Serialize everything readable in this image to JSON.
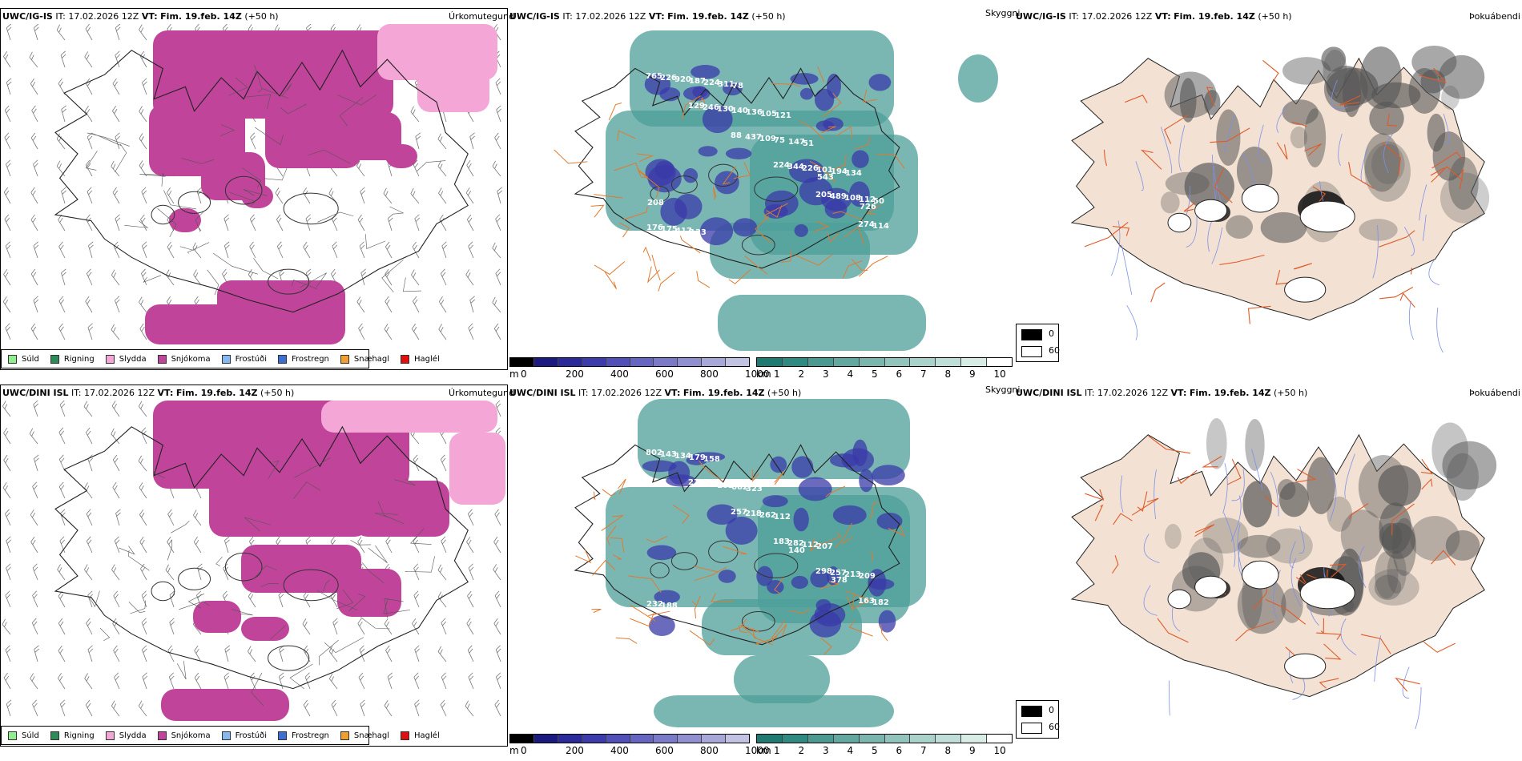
{
  "colors": {
    "sudd": "#90ee90",
    "rigning": "#2e8b57",
    "slydda": "#f4a6d7",
    "snjokoma": "#c0449a",
    "frostudi": "#87b8ef",
    "frostregn": "#3c6fd1",
    "snaehagl": "#f0a030",
    "haglel": "#e01010",
    "cloud_teal": "#4e9f9a",
    "cloud_blue": "#3a3aa8",
    "land_fog": "#f3e2d3",
    "road": "#e05a28",
    "river": "#7c90e8"
  },
  "rows": [
    {
      "model": "UWC/IG-IS",
      "it_label": "IT:",
      "it_value": "17.02.2026 12Z",
      "vt_label": "VT:",
      "vt_value": "Fim. 19.feb. 14Z",
      "lead": "(+50 h)",
      "peaks": [
        "765",
        "129",
        "88",
        "224",
        "205",
        "274",
        "226",
        "246",
        "437",
        "344",
        "489",
        "114",
        "920",
        "130",
        "109",
        "226",
        "108",
        "176",
        "187",
        "140",
        "75",
        "101",
        "112",
        "175",
        "224",
        "136",
        "147",
        "194",
        "50",
        "417",
        "311",
        "105",
        "51",
        "134",
        "208",
        "133",
        "78",
        "121",
        "543",
        "726"
      ]
    },
    {
      "model": "UWC/DINI ISL",
      "it_label": "IT:",
      "it_value": "17.02.2026 12Z",
      "vt_label": "VT:",
      "vt_value": "Fim. 19.feb. 14Z",
      "lead": "(+50 h)",
      "peaks": [
        "802",
        "270",
        "257",
        "183",
        "298",
        "163",
        "143",
        "120",
        "218",
        "282",
        "257",
        "182",
        "134",
        "103",
        "262",
        "112",
        "213",
        "232",
        "179",
        "662",
        "112",
        "207",
        "209",
        "188",
        "158",
        "323",
        "140",
        "378"
      ]
    }
  ],
  "panel_titles": {
    "precip_type": "Úrkomutegund",
    "visibility": "Skyggni",
    "fog": "Þokuábendi"
  },
  "precip_legend": [
    {
      "label": "Súld",
      "color": "#90ee90"
    },
    {
      "label": "Rigning",
      "color": "#2e8b57"
    },
    {
      "label": "Slydda",
      "color": "#f4a6d7"
    },
    {
      "label": "Snjókoma",
      "color": "#c0449a"
    },
    {
      "label": "Frostúði",
      "color": "#87b8ef"
    },
    {
      "label": "Frostregn",
      "color": "#3c6fd1"
    },
    {
      "label": "Snæhagl",
      "color": "#f0a030"
    },
    {
      "label": "Haglél",
      "color": "#e01010"
    }
  ],
  "vis_m_scale": {
    "unit": "m",
    "ticks": [
      "0",
      "200",
      "400",
      "600",
      "800",
      "1000"
    ],
    "colors": [
      "#000000",
      "#1a1a80",
      "#2a2a9a",
      "#3c3cac",
      "#5050b8",
      "#6666c2",
      "#7a7ac8",
      "#9090d0",
      "#a8a8d8",
      "#c2c2e2"
    ]
  },
  "vis_km_scale": {
    "unit": "km",
    "ticks": [
      "1",
      "2",
      "3",
      "4",
      "5",
      "6",
      "7",
      "8",
      "9",
      "10"
    ],
    "colors": [
      "#1f7a72",
      "#2f8a82",
      "#4a9a92",
      "#62a8a0",
      "#7ab6ae",
      "#90c4bc",
      "#a8d2ca",
      "#c0ded8",
      "#d8ece6",
      "#ffffff"
    ]
  },
  "fog_key": {
    "high": "0",
    "low": "60"
  }
}
